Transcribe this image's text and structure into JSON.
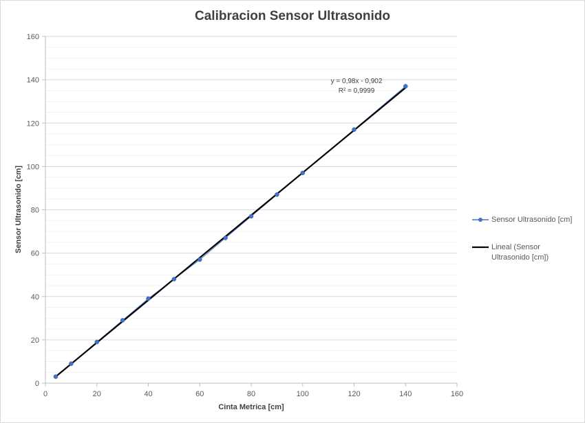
{
  "chart_data": {
    "type": "scatter",
    "title": "Calibracion  Sensor  Ultrasonido",
    "xlabel": "Cinta Metrica [cm]",
    "ylabel": "Sensor Ultrasonido [cm]",
    "xlim": [
      0,
      160
    ],
    "ylim": [
      0,
      160
    ],
    "xticks": [
      0,
      20,
      40,
      60,
      80,
      100,
      120,
      140,
      160
    ],
    "yticks": [
      0,
      20,
      40,
      60,
      80,
      100,
      120,
      140,
      160
    ],
    "grid": true,
    "legend_position": "right",
    "series": [
      {
        "name": "Sensor Ultrasonido [cm]",
        "color": "#4472c4",
        "x": [
          4,
          10,
          20,
          30,
          40,
          50,
          60,
          70,
          80,
          90,
          100,
          120,
          140
        ],
        "y": [
          3,
          9,
          19,
          29,
          39,
          48,
          57,
          67,
          77,
          87,
          97,
          117,
          137
        ]
      }
    ],
    "trendline": {
      "type": "linear",
      "name_line1": "Lineal (Sensor",
      "name_line2": "Ultrasonido [cm])",
      "color": "#000000",
      "slope": 0.98,
      "intercept": -0.902,
      "x_range": [
        4,
        140
      ],
      "equation": "y = 0,98x - 0,902",
      "r_squared": "R² = 0,9999"
    }
  }
}
